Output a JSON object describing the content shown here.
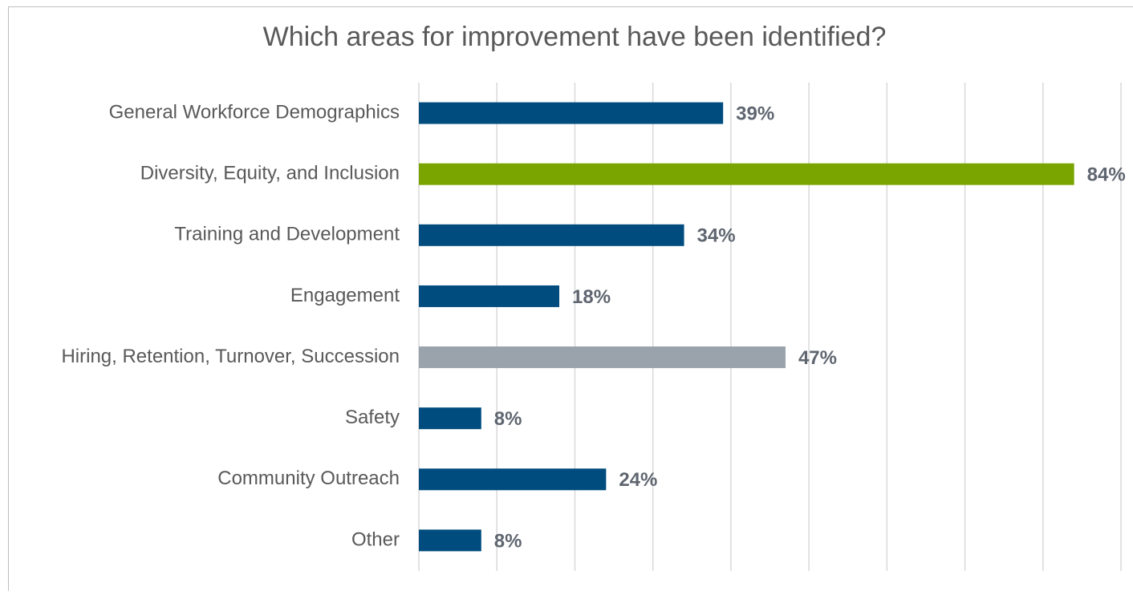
{
  "chart_data": {
    "type": "bar",
    "orientation": "horizontal",
    "title": "Which areas for improvement have been identified?",
    "categories": [
      "General Workforce Demographics",
      "Diversity, Equity, and Inclusion",
      "Training and Development",
      "Engagement",
      "Hiring, Retention, Turnover, Succession",
      "Safety",
      "Community Outreach",
      "Other"
    ],
    "values": [
      39,
      84,
      34,
      18,
      47,
      8,
      24,
      8
    ],
    "value_labels": [
      "39%",
      "84%",
      "34%",
      "18%",
      "47%",
      "8%",
      "24%",
      "8%"
    ],
    "colors": [
      "#004c7e",
      "#7aa500",
      "#004c7e",
      "#004c7e",
      "#9aa3ab",
      "#004c7e",
      "#004c7e",
      "#004c7e"
    ],
    "xlim": [
      0,
      90
    ],
    "xticks": [
      0,
      10,
      20,
      30,
      40,
      50,
      60,
      70,
      80,
      90
    ],
    "grid": true
  }
}
